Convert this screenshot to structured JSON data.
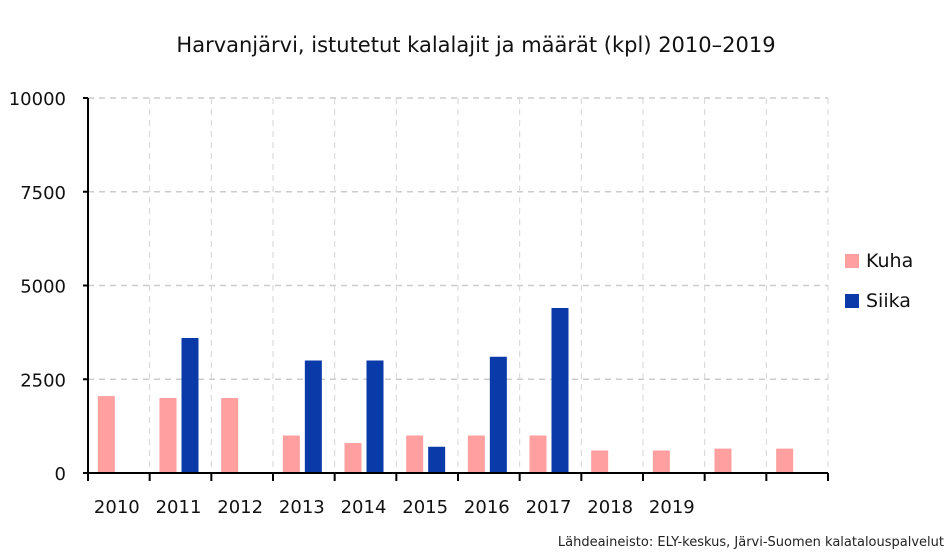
{
  "chart_data": {
    "type": "bar",
    "title": "Harvanjärvi, istutetut kalalajit ja määrät (kpl) 2010–2019",
    "xlabel": "",
    "ylabel": "",
    "categories": [
      "2010",
      "2011",
      "2012",
      "2013",
      "2014",
      "2015",
      "2016",
      "2017",
      "2018",
      "2019",
      "",
      ""
    ],
    "series": [
      {
        "name": "Kuha",
        "color": "#ff9f9f",
        "values": [
          2050,
          2000,
          2000,
          1000,
          800,
          1000,
          1000,
          1000,
          600,
          600,
          650,
          650
        ]
      },
      {
        "name": "Siika",
        "color": "#0a3aa8",
        "values": [
          0,
          3600,
          0,
          3000,
          3000,
          700,
          3100,
          4400,
          0,
          0,
          0,
          0
        ]
      }
    ],
    "ylim": [
      0,
      10000
    ],
    "yticks": [
      "0",
      "2500",
      "5000",
      "7500",
      "10000"
    ],
    "grid": true,
    "legend_position": "right"
  },
  "source": "Lähdeaineisto: ELY-keskus, Järvi-Suomen kalatalouspalvelut"
}
